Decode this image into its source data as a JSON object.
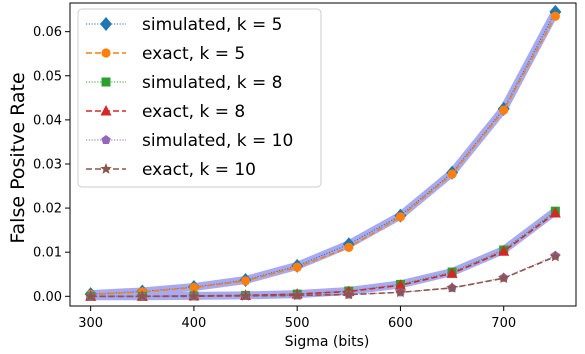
{
  "chart_data": {
    "type": "line",
    "xlabel": "Sigma (bits)",
    "ylabel": "False Positve Rate",
    "xlim": [
      280,
      770
    ],
    "ylim": [
      -0.0022,
      0.0665
    ],
    "xticks": [
      300,
      400,
      500,
      600,
      700
    ],
    "yticks": [
      0.0,
      0.01,
      0.02,
      0.03,
      0.04,
      0.05,
      0.06
    ],
    "ytick_labels": [
      "0.00",
      "0.01",
      "0.02",
      "0.03",
      "0.04",
      "0.05",
      "0.06"
    ],
    "grid": false,
    "legend_position": "top-left",
    "x": [
      300,
      350,
      400,
      450,
      500,
      550,
      600,
      650,
      700,
      750
    ],
    "series": [
      {
        "name": "simulated, k = 5",
        "style": "dotted",
        "marker": "diamond",
        "color": "#1f77b4",
        "band_color": "#a7a9f2",
        "values": [
          0.0005,
          0.0011,
          0.0021,
          0.0037,
          0.0069,
          0.0118,
          0.0183,
          0.028,
          0.0425,
          0.0645
        ]
      },
      {
        "name": "exact, k = 5",
        "style": "dashed",
        "marker": "circle",
        "color": "#ff7f0e",
        "values": [
          0.0004,
          0.001,
          0.002,
          0.0035,
          0.0066,
          0.0111,
          0.018,
          0.0277,
          0.0422,
          0.0635
        ]
      },
      {
        "name": "simulated, k = 8",
        "style": "dotted",
        "marker": "square",
        "color": "#2ca02c",
        "band_color": "#a7a9f2",
        "values": [
          0.0,
          0.0,
          0.0001,
          0.0002,
          0.0005,
          0.0012,
          0.0027,
          0.0055,
          0.0105,
          0.0193
        ]
      },
      {
        "name": "exact, k = 8",
        "style": "dashed",
        "marker": "triangle",
        "color": "#d62728",
        "values": [
          0.0,
          0.0,
          0.0001,
          0.0002,
          0.0005,
          0.0011,
          0.0025,
          0.0052,
          0.0102,
          0.0189
        ]
      },
      {
        "name": "simulated, k = 10",
        "style": "dotted",
        "marker": "pentagon",
        "color": "#9467bd",
        "values": [
          0.0,
          0.0,
          0.0,
          0.0001,
          0.0002,
          0.0004,
          0.0009,
          0.0019,
          0.0042,
          0.0092
        ]
      },
      {
        "name": "exact, k = 10",
        "style": "dashed",
        "marker": "star",
        "color": "#8c564b",
        "values": [
          0.0,
          0.0,
          0.0,
          0.0001,
          0.0002,
          0.0004,
          0.0009,
          0.0019,
          0.0041,
          0.009
        ]
      }
    ]
  }
}
